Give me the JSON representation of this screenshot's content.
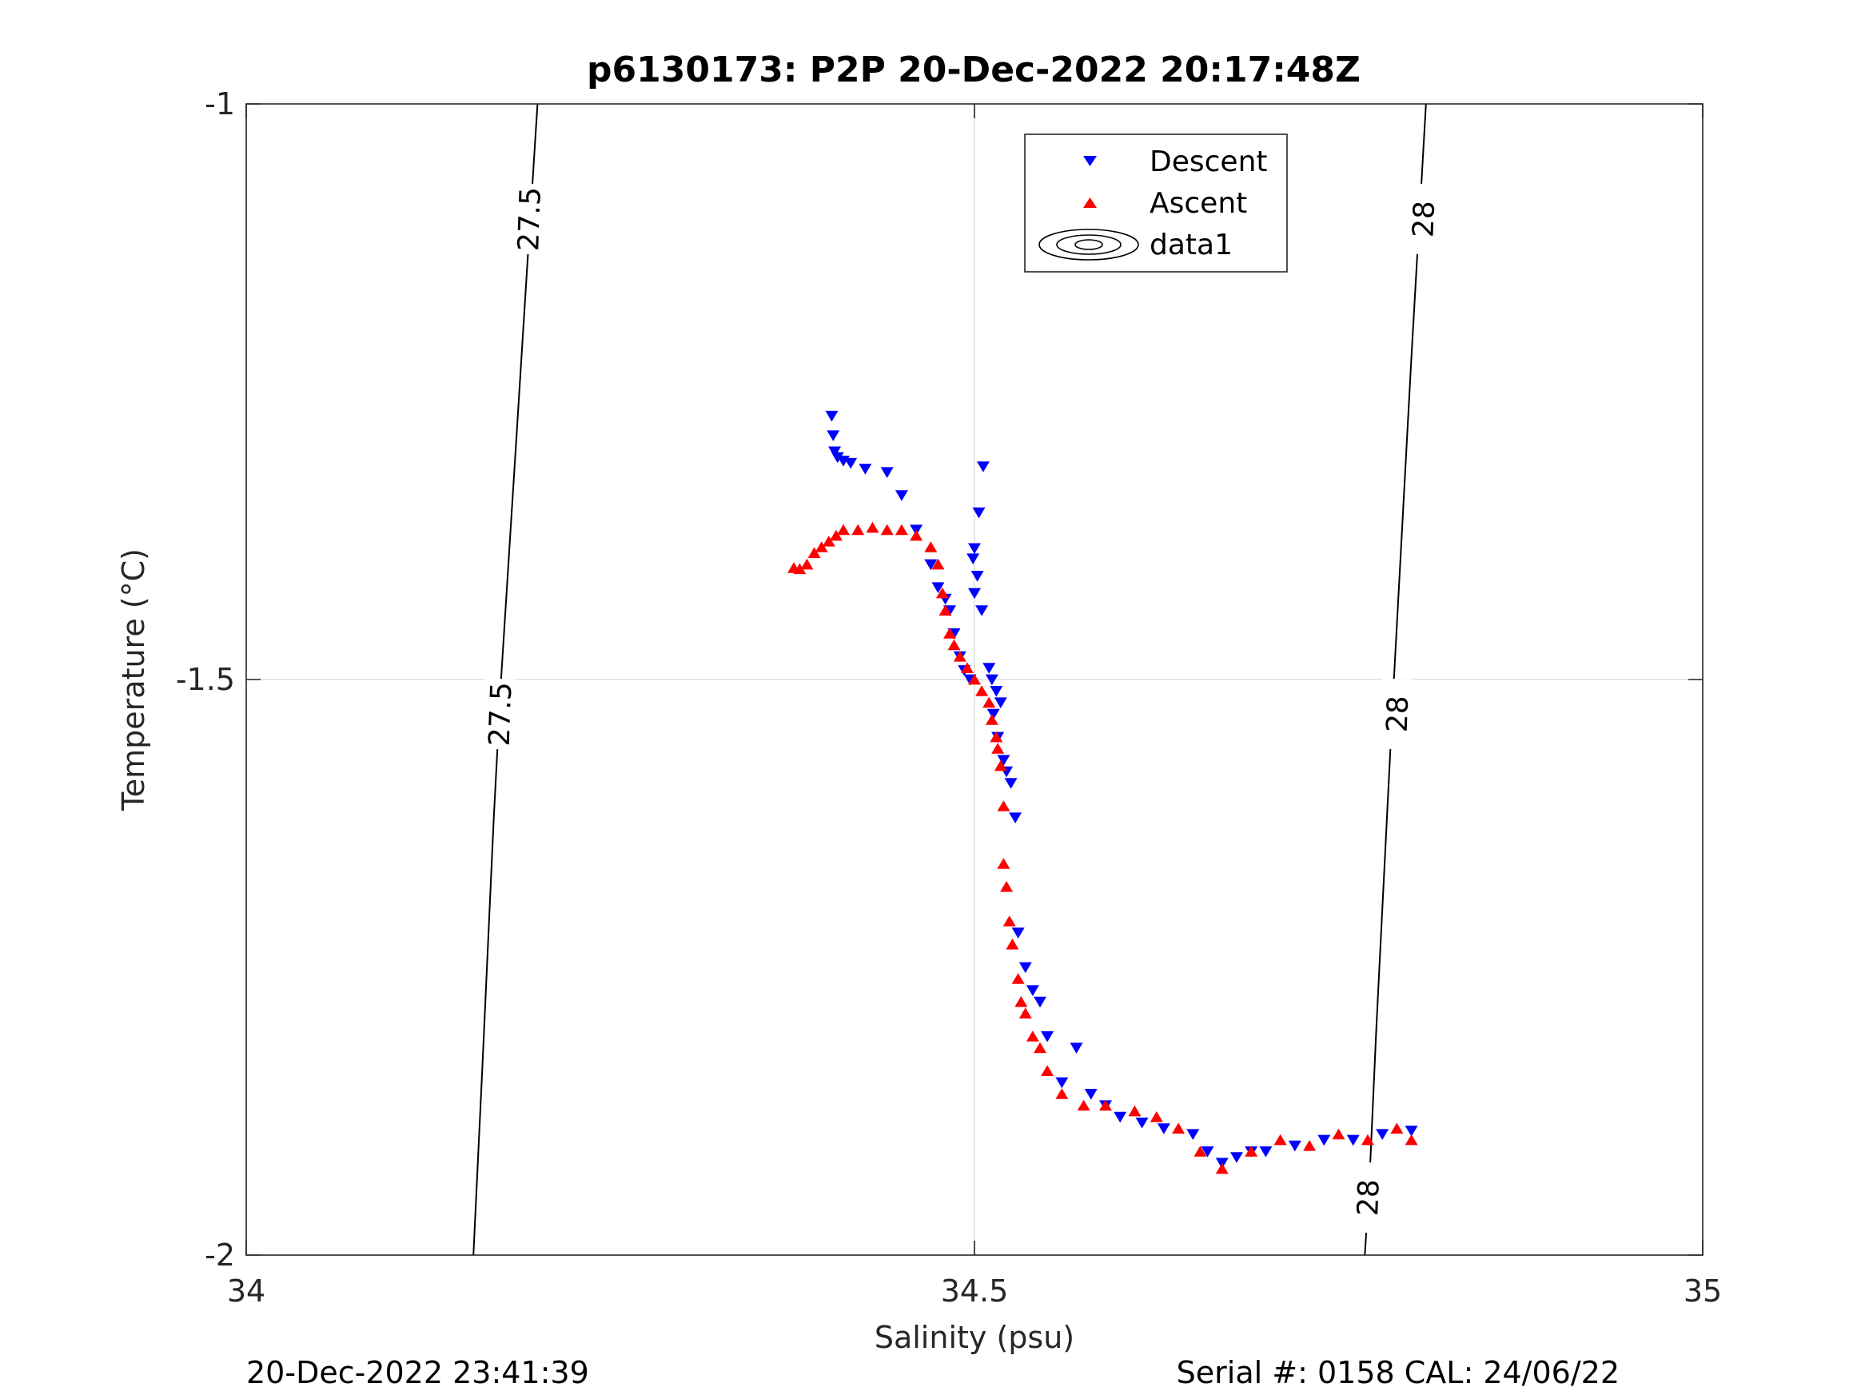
{
  "chart_data": {
    "type": "scatter",
    "title": "p6130173: P2P 20-Dec-2022 20:17:48Z",
    "xlabel": "Salinity (psu)",
    "ylabel": "Temperature (°C)",
    "xlim": [
      34,
      35
    ],
    "ylim": [
      -2,
      -1
    ],
    "x_ticks": [
      34,
      34.5,
      35
    ],
    "x_tick_labels": [
      "34",
      "34.5",
      "35"
    ],
    "y_ticks": [
      -2,
      -1.5,
      -1
    ],
    "y_tick_labels": [
      "-2",
      "-1.5",
      "-1"
    ],
    "grid": true,
    "legend_position": "top-center",
    "legend": [
      {
        "label": "Descent",
        "marker": "triangle-down",
        "color": "#0000ff"
      },
      {
        "label": "Ascent",
        "marker": "triangle-up",
        "color": "#ff0000"
      },
      {
        "label": "data1",
        "marker": "contour-ellipses",
        "color": "#000000"
      }
    ],
    "contours": [
      {
        "level_label": "27.5",
        "points": [
          [
            34.156,
            -2.0
          ],
          [
            34.162,
            -1.84
          ],
          [
            34.17,
            -1.62
          ],
          [
            34.175,
            -1.5
          ],
          [
            34.185,
            -1.3
          ],
          [
            34.193,
            -1.14
          ],
          [
            34.2,
            -1.0
          ]
        ],
        "labels_at": [
          [
            34.174,
            -1.53
          ],
          [
            34.194,
            -1.1
          ]
        ]
      },
      {
        "level_label": "28",
        "points": [
          [
            34.768,
            -2.0
          ],
          [
            34.771,
            -1.94
          ],
          [
            34.776,
            -1.8
          ],
          [
            34.788,
            -1.5
          ],
          [
            34.8,
            -1.22
          ],
          [
            34.81,
            -1.0
          ]
        ],
        "labels_at": [
          [
            34.77,
            -1.95
          ],
          [
            34.79,
            -1.53
          ],
          [
            34.808,
            -1.1
          ]
        ]
      }
    ],
    "series": [
      {
        "name": "Descent",
        "marker": "triangle-down",
        "color": "#0000ff",
        "x": [
          34.402,
          34.403,
          34.404,
          34.406,
          34.41,
          34.415,
          34.425,
          34.44,
          34.45,
          34.46,
          34.47,
          34.475,
          34.48,
          34.483,
          34.486,
          34.49,
          34.493,
          34.497,
          34.5,
          34.503,
          34.506,
          34.499,
          34.502,
          34.5,
          34.505,
          34.51,
          34.512,
          34.515,
          34.518,
          34.513,
          34.516,
          34.52,
          34.522,
          34.525,
          34.528,
          34.53,
          34.535,
          34.54,
          34.545,
          34.55,
          34.56,
          34.57,
          34.58,
          34.59,
          34.6,
          34.615,
          34.63,
          34.65,
          34.66,
          34.67,
          34.68,
          34.69,
          34.7,
          34.72,
          34.74,
          34.76,
          34.78,
          34.8
        ],
        "y": [
          -1.271,
          -1.288,
          -1.302,
          -1.307,
          -1.31,
          -1.312,
          -1.317,
          -1.32,
          -1.34,
          -1.37,
          -1.4,
          -1.42,
          -1.43,
          -1.44,
          -1.46,
          -1.48,
          -1.492,
          -1.5,
          -1.386,
          -1.355,
          -1.315,
          -1.395,
          -1.41,
          -1.425,
          -1.44,
          -1.49,
          -1.5,
          -1.51,
          -1.52,
          -1.53,
          -1.55,
          -1.57,
          -1.58,
          -1.59,
          -1.62,
          -1.72,
          -1.75,
          -1.77,
          -1.78,
          -1.81,
          -1.85,
          -1.82,
          -1.86,
          -1.87,
          -1.88,
          -1.885,
          -1.89,
          -1.895,
          -1.91,
          -1.92,
          -1.915,
          -1.91,
          -1.91,
          -1.905,
          -1.9,
          -1.9,
          -1.895,
          -1.892
        ]
      },
      {
        "name": "Ascent",
        "marker": "triangle-up",
        "color": "#ff0000",
        "x": [
          34.376,
          34.38,
          34.385,
          34.39,
          34.395,
          34.4,
          34.405,
          34.41,
          34.42,
          34.43,
          34.44,
          34.45,
          34.46,
          34.47,
          34.475,
          34.478,
          34.48,
          34.483,
          34.486,
          34.49,
          34.495,
          34.5,
          34.505,
          34.51,
          34.512,
          34.515,
          34.516,
          34.518,
          34.52,
          34.52,
          34.522,
          34.524,
          34.526,
          34.53,
          34.532,
          34.535,
          34.54,
          34.545,
          34.55,
          34.56,
          34.575,
          34.59,
          34.61,
          34.625,
          34.64,
          34.655,
          34.67,
          34.69,
          34.71,
          34.73,
          34.75,
          34.77,
          34.79,
          34.8
        ],
        "y": [
          -1.403,
          -1.404,
          -1.4,
          -1.39,
          -1.385,
          -1.38,
          -1.375,
          -1.37,
          -1.37,
          -1.368,
          -1.37,
          -1.37,
          -1.375,
          -1.385,
          -1.4,
          -1.425,
          -1.44,
          -1.46,
          -1.47,
          -1.48,
          -1.49,
          -1.5,
          -1.51,
          -1.52,
          -1.535,
          -1.55,
          -1.56,
          -1.575,
          -1.61,
          -1.66,
          -1.68,
          -1.71,
          -1.73,
          -1.76,
          -1.78,
          -1.79,
          -1.81,
          -1.82,
          -1.84,
          -1.86,
          -1.87,
          -1.87,
          -1.875,
          -1.88,
          -1.89,
          -1.91,
          -1.925,
          -1.91,
          -1.9,
          -1.905,
          -1.895,
          -1.9,
          -1.89,
          -1.9
        ]
      }
    ]
  },
  "footer": {
    "left": "20-Dec-2022 23:41:39",
    "right": "Serial #: 0158  CAL: 24/06/22"
  }
}
